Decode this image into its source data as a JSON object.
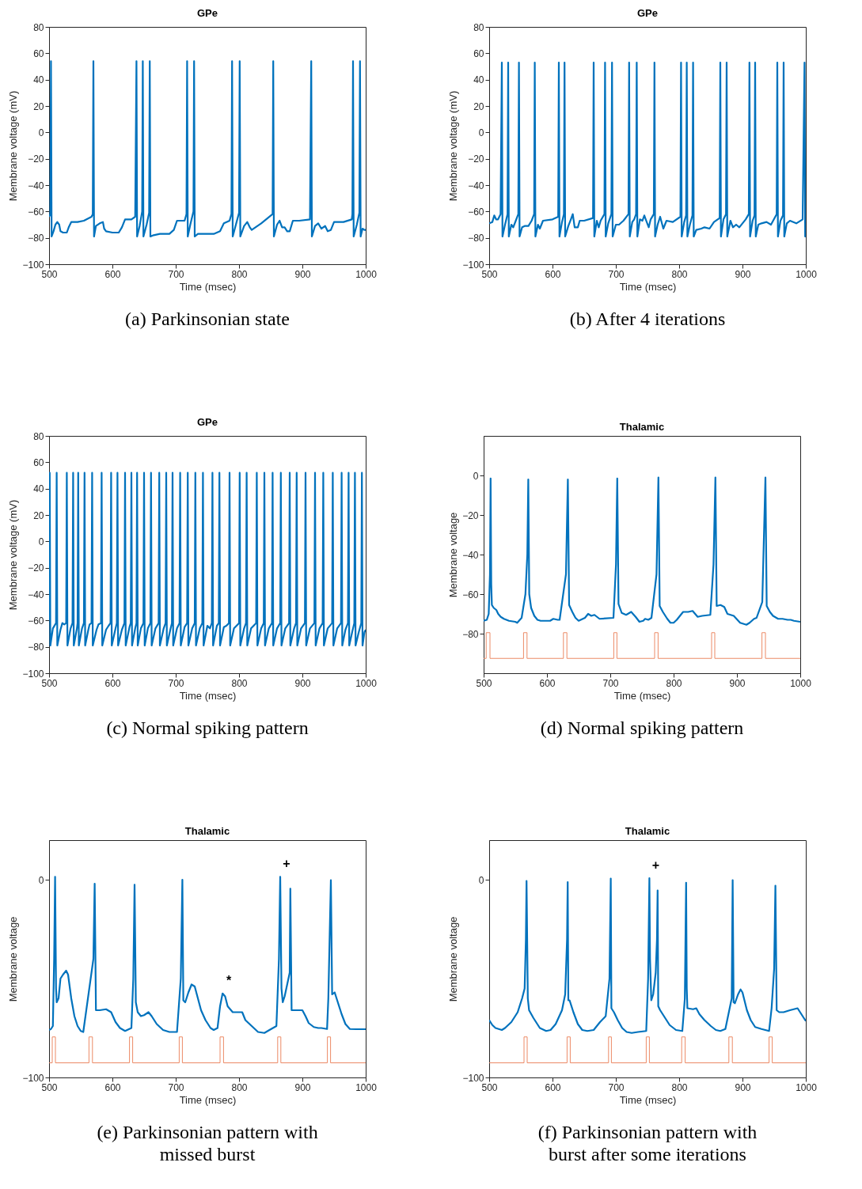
{
  "chart_data": [
    {
      "type": "line",
      "title": "GPe",
      "xlabel": "Time (msec)",
      "ylabel": "Membrane voltage (mV)",
      "xlim": [
        500,
        1000
      ],
      "xticks": [
        500,
        600,
        700,
        800,
        900,
        1000
      ],
      "ylim": [
        -100,
        80
      ],
      "yticks": [
        -100,
        -80,
        -60,
        -40,
        -20,
        0,
        20,
        40,
        60,
        80
      ],
      "grid": false,
      "annotations": [
        "(a) Parkinsonian state"
      ],
      "series": [
        {
          "color": "#0072bd",
          "x": [
            500,
            502,
            503,
            504,
            507,
            510,
            513,
            516,
            518,
            522,
            528,
            531,
            535,
            545,
            555,
            567,
            569,
            570,
            571,
            574,
            580,
            585,
            587,
            590,
            600,
            610,
            615,
            620,
            630,
            636,
            638,
            639,
            643,
            647,
            648,
            649,
            654,
            658,
            659,
            660,
            665,
            675,
            690,
            697,
            702,
            714,
            717,
            718,
            719,
            723,
            728,
            729,
            730,
            735,
            745,
            760,
            770,
            776,
            785,
            788,
            789,
            790,
            795,
            800,
            801,
            802,
            808,
            813,
            817,
            820,
            835,
            853,
            854,
            855,
            860,
            864,
            868,
            872,
            876,
            880,
            885,
            895,
            912,
            914,
            915,
            920,
            925,
            930,
            936,
            940,
            945,
            950,
            965,
            978,
            979,
            980,
            981,
            986,
            990,
            991,
            992,
            995,
            998,
            1000
          ],
          "values": [
            -64,
            -62,
            54,
            -79,
            -75,
            -70,
            -68,
            -70,
            -75,
            -76,
            -76,
            -72,
            -68,
            -68,
            -67,
            -64,
            -62,
            54,
            -79,
            -71,
            -69,
            -68,
            -73,
            -75,
            -76,
            -76,
            -72,
            -66,
            -66,
            -64,
            54,
            -79,
            -71,
            -60,
            54,
            -79,
            -70,
            -61,
            54,
            -79,
            -78,
            -77,
            -77,
            -74,
            -67,
            -67,
            -62,
            54,
            -79,
            -70,
            -60,
            54,
            -79,
            -77,
            -77,
            -77,
            -75,
            -69,
            -67,
            -62,
            54,
            -79,
            -70,
            -61,
            54,
            -79,
            -71,
            -68,
            -72,
            -74,
            -69,
            -62,
            54,
            -79,
            -70,
            -67,
            -72,
            -72,
            -75,
            -75,
            -67,
            -67,
            -66,
            54,
            -79,
            -71,
            -69,
            -73,
            -71,
            -75,
            -74,
            -68,
            -68,
            -66,
            -62,
            54,
            -79,
            -70,
            -61,
            54,
            -79,
            -73,
            -74,
            -74
          ]
        }
      ]
    },
    {
      "type": "line",
      "title": "GPe",
      "xlabel": "Time (msec)",
      "ylabel": "Membrane voltage (mV)",
      "xlim": [
        500,
        1000
      ],
      "xticks": [
        500,
        600,
        700,
        800,
        900,
        1000
      ],
      "ylim": [
        -100,
        80
      ],
      "yticks": [
        -100,
        -80,
        -60,
        -40,
        -20,
        0,
        20,
        40,
        60,
        80
      ],
      "grid": false,
      "annotations": [
        "(b) After 4 iterations"
      ],
      "series": [
        {
          "color": "#0072bd",
          "x": [
            500,
            505,
            508,
            511,
            514,
            518,
            520,
            521,
            525,
            529,
            530,
            531,
            535,
            538,
            542,
            546,
            547,
            548,
            552,
            556,
            562,
            567,
            571,
            572,
            573,
            577,
            580,
            585,
            600,
            609,
            610,
            611,
            615,
            618,
            619,
            620,
            625,
            629,
            632,
            635,
            640,
            643,
            650,
            664,
            665,
            666,
            670,
            673,
            676,
            682,
            683,
            684,
            688,
            693,
            694,
            695,
            700,
            705,
            712,
            720,
            721,
            722,
            726,
            729,
            732,
            733,
            734,
            738,
            742,
            745,
            748,
            752,
            755,
            760,
            761,
            762,
            766,
            770,
            775,
            780,
            790,
            802,
            803,
            804,
            808,
            811,
            812,
            813,
            817,
            821,
            822,
            823,
            827,
            835,
            840,
            848,
            855,
            864,
            865,
            866,
            870,
            874,
            875,
            876,
            881,
            885,
            890,
            895,
            905,
            910,
            911,
            912,
            916,
            919,
            920,
            921,
            925,
            930,
            938,
            945,
            954,
            955,
            956,
            960,
            964,
            965,
            966,
            970,
            975,
            985,
            995,
            998,
            999,
            1000
          ],
          "values": [
            -69,
            -68,
            -63,
            -66,
            -66,
            -62,
            53,
            -79,
            -70,
            -62,
            53,
            -79,
            -70,
            -72,
            -67,
            -62,
            53,
            -79,
            -72,
            -71,
            -71,
            -67,
            -62,
            53,
            -79,
            -70,
            -73,
            -67,
            -66,
            -64,
            53,
            -79,
            -68,
            -62,
            53,
            -79,
            -71,
            -66,
            -62,
            -72,
            -72,
            -67,
            -67,
            -65,
            53,
            -79,
            -67,
            -72,
            -67,
            -62,
            53,
            -79,
            -69,
            -62,
            53,
            -79,
            -70,
            -70,
            -67,
            -62,
            53,
            -79,
            -68,
            -66,
            -62,
            53,
            -79,
            -66,
            -67,
            -63,
            -67,
            -72,
            -66,
            -62,
            53,
            -79,
            -70,
            -64,
            -73,
            -67,
            -68,
            -64,
            53,
            -79,
            -68,
            -63,
            53,
            -79,
            -70,
            -63,
            53,
            -79,
            -74,
            -73,
            -72,
            -73,
            -68,
            -65,
            53,
            -79,
            -66,
            -62,
            53,
            -79,
            -67,
            -72,
            -70,
            -72,
            -66,
            -62,
            53,
            -79,
            -67,
            -63,
            53,
            -79,
            -70,
            -69,
            -68,
            -70,
            -62,
            53,
            -79,
            -67,
            -63,
            53,
            -79,
            -69,
            -67,
            -69,
            -66,
            53,
            -79,
            -79
          ]
        }
      ]
    },
    {
      "type": "line",
      "title": "GPe",
      "xlabel": "Time (msec)",
      "ylabel": "Membrane voltage (mV)",
      "xlim": [
        500,
        1000
      ],
      "xticks": [
        500,
        600,
        700,
        800,
        900,
        1000
      ],
      "ylim": [
        -100,
        80
      ],
      "yticks": [
        -100,
        -80,
        -60,
        -40,
        -20,
        0,
        20,
        40,
        60,
        80
      ],
      "grid": false,
      "annotations": [
        "(c) Normal spiking pattern"
      ],
      "series": [
        {
          "color": "#0072bd",
          "x": [
            500,
            501,
            502,
            506,
            511,
            512,
            513,
            518,
            521,
            524,
            527,
            528,
            529,
            534,
            537,
            538,
            539,
            544,
            545,
            546,
            547,
            552,
            555,
            556,
            557,
            562,
            564,
            567,
            568,
            569,
            575,
            578,
            582,
            583,
            584,
            590,
            594,
            597,
            598,
            599,
            605,
            607,
            608,
            609,
            615,
            619,
            620,
            621,
            627,
            629,
            630,
            631,
            636,
            638,
            639,
            640,
            645,
            649,
            650,
            651,
            656,
            660,
            661,
            662,
            668,
            673,
            674,
            675,
            681,
            684,
            685,
            686,
            692,
            694,
            695,
            696,
            702,
            706,
            707,
            708,
            714,
            718,
            719,
            720,
            726,
            730,
            731,
            732,
            738,
            742,
            743,
            744,
            750,
            754,
            757,
            758,
            759,
            765,
            768,
            769,
            770,
            776,
            780,
            784,
            785,
            786,
            792,
            796,
            800,
            801,
            802,
            808,
            811,
            812,
            813,
            819,
            823,
            827,
            828,
            829,
            835,
            839,
            840,
            841,
            847,
            852,
            853,
            854,
            860,
            865,
            866,
            867,
            873,
            879,
            880,
            881,
            887,
            890,
            891,
            892,
            898,
            904,
            905,
            906,
            912,
            919,
            920,
            921,
            927,
            932,
            933,
            934,
            940,
            947,
            948,
            949,
            955,
            961,
            962,
            963,
            968,
            972,
            973,
            974,
            979,
            982,
            983,
            984,
            989,
            993,
            994,
            995,
            998,
            1000
          ],
          "values": [
            -60,
            52,
            -79,
            -66,
            -62,
            52,
            -79,
            -67,
            -62,
            -63,
            -62,
            52,
            -79,
            -66,
            -62,
            52,
            -79,
            -66,
            -62,
            52,
            -79,
            -66,
            -62,
            52,
            -79,
            -67,
            -63,
            -62,
            52,
            -79,
            -67,
            -63,
            -62,
            52,
            -79,
            -67,
            -64,
            -62,
            52,
            -79,
            -66,
            -62,
            52,
            -79,
            -67,
            -62,
            52,
            -79,
            -65,
            -62,
            52,
            -79,
            -66,
            -62,
            52,
            -79,
            -66,
            -62,
            52,
            -79,
            -66,
            -62,
            52,
            -79,
            -66,
            -62,
            52,
            -79,
            -66,
            -62,
            52,
            -79,
            -66,
            -62,
            52,
            -79,
            -66,
            -62,
            52,
            -79,
            -65,
            -62,
            52,
            -79,
            -66,
            -62,
            52,
            -79,
            -66,
            -62,
            52,
            -79,
            -64,
            -66,
            -62,
            52,
            -79,
            -64,
            -62,
            52,
            -79,
            -65,
            -64,
            -62,
            52,
            -79,
            -66,
            -64,
            -62,
            52,
            -79,
            -66,
            -62,
            52,
            -79,
            -66,
            -64,
            -62,
            52,
            -79,
            -66,
            -62,
            52,
            -79,
            -66,
            -62,
            52,
            -79,
            -66,
            -62,
            52,
            -79,
            -66,
            -62,
            52,
            -79,
            -66,
            -62,
            52,
            -79,
            -66,
            -62,
            52,
            -79,
            -66,
            -62,
            52,
            -79,
            -66,
            -62,
            52,
            -79,
            -66,
            -62,
            52,
            -79,
            -66,
            -62,
            52,
            -79,
            -67,
            -62,
            52,
            -79,
            -68,
            -62,
            52,
            -79,
            -69,
            -62,
            52,
            -79,
            -69,
            -67
          ]
        }
      ]
    },
    {
      "type": "line",
      "title": "Thalamic",
      "xlabel": "Time (msec)",
      "ylabel": "Membrane voltage",
      "xlim": [
        500,
        1000
      ],
      "xticks": [
        500,
        600,
        700,
        800,
        900,
        1000
      ],
      "ylim": [
        -100,
        20
      ],
      "yticks": [
        -80,
        -60,
        -40,
        -20,
        0
      ],
      "grid": false,
      "annotations": [
        "(d) Normal spiking pattern"
      ],
      "series": [
        {
          "color": "#0072bd",
          "x": [
            500,
            505,
            508,
            510,
            511,
            512,
            513,
            516,
            520,
            523,
            527,
            532,
            540,
            550,
            553,
            560,
            566,
            569,
            570.5,
            572,
            575,
            580,
            585,
            590,
            597,
            605,
            610,
            617,
            620,
            630,
            633,
            635,
            640,
            645,
            650,
            660,
            665,
            670,
            675,
            683,
            705,
            709,
            711,
            713,
            718,
            725,
            733,
            740,
            746,
            752,
            755,
            760,
            765,
            773,
            776,
            778,
            783,
            790,
            795,
            800,
            805,
            815,
            823,
            830,
            838,
            845,
            858,
            863,
            866,
            868,
            874,
            880,
            885,
            895,
            905,
            915,
            920,
            927,
            931,
            940,
            945,
            947,
            952,
            957,
            965,
            972,
            980,
            985,
            990,
            1000
          ],
          "values": [
            -73.5,
            -73,
            -70,
            -50,
            -1.5,
            -55,
            -65.5,
            -67,
            -68,
            -70,
            -71.5,
            -72.5,
            -73.5,
            -74,
            -74.5,
            -72,
            -60,
            -40,
            -2,
            -60,
            -67,
            -71,
            -73,
            -73.5,
            -73.5,
            -73.5,
            -72.5,
            -73,
            -73,
            -50,
            -2,
            -65.5,
            -69,
            -72,
            -73.5,
            -72,
            -70,
            -71,
            -70.5,
            -72.5,
            -72,
            -45,
            -1.5,
            -65,
            -69.5,
            -70.5,
            -69,
            -71.5,
            -74,
            -73.5,
            -72.5,
            -73,
            -72,
            -50,
            -1,
            -66,
            -69,
            -72.5,
            -74.5,
            -74.5,
            -73,
            -69,
            -69,
            -68.5,
            -71.5,
            -71,
            -70.5,
            -45,
            -1,
            -66,
            -65.5,
            -66.5,
            -70,
            -71,
            -74.5,
            -75.5,
            -74.5,
            -72.5,
            -72,
            -64,
            -1,
            -66,
            -69,
            -71,
            -72.5,
            -72.5,
            -73,
            -73,
            -73.5,
            -74
          ]
        },
        {
          "type": "step",
          "color": "#ec8a66",
          "x": [
            500,
            504,
            510,
            563,
            568.5,
            626,
            631.5,
            705.5,
            710.5,
            770,
            775.5,
            860,
            865,
            939.5,
            945,
            1000
          ],
          "values": [
            -92.5,
            -79.5,
            -92.5,
            -79.5,
            -92.5,
            -79.5,
            -92.5,
            -79.5,
            -92.5,
            -79.5,
            -92.5,
            -79.5,
            -92.5,
            -79.5,
            -92.5,
            -92.5
          ]
        }
      ]
    },
    {
      "type": "line",
      "title": "Thalamic",
      "xlabel": "Time (msec)",
      "ylabel": "Membrane voltage",
      "xlim": [
        500,
        1000
      ],
      "xticks": [
        500,
        600,
        700,
        800,
        900,
        1000
      ],
      "ylim": [
        -100,
        20
      ],
      "yticks": [
        -100,
        0
      ],
      "grid": false,
      "annotations": [
        {
          "text": "*",
          "x": 774,
          "y": -57.5
        },
        {
          "text": "+",
          "x": 865,
          "y": 1.5
        },
        "(e) Parkinsonian pattern with missed burst"
      ],
      "series": [
        {
          "color": "#0072bd",
          "x": [
            500,
            503,
            506,
            508,
            509.5,
            511,
            512,
            515,
            518,
            522,
            527,
            530,
            535,
            540,
            545,
            550,
            554,
            570,
            572,
            574,
            580,
            590,
            598,
            605,
            612,
            620,
            630,
            633,
            635,
            637,
            640,
            645,
            650,
            657,
            662,
            670,
            680,
            690,
            702,
            708,
            710.5,
            712,
            715,
            720,
            725,
            730,
            735,
            740,
            747,
            755,
            760,
            766,
            770,
            774,
            778,
            782,
            790,
            795,
            805,
            810,
            820,
            830,
            840,
            848,
            859,
            863,
            865,
            867,
            869,
            872,
            880,
            881,
            883,
            890,
            900,
            905,
            910,
            918,
            925,
            930,
            939,
            941,
            945,
            947,
            951,
            955,
            962,
            968,
            975,
            985,
            1000
          ],
          "values": [
            -76,
            -75.5,
            -74,
            -40,
            1.5,
            -55,
            -62,
            -60,
            -50,
            -48,
            -46,
            -48,
            -60,
            -69,
            -74,
            -76.5,
            -77,
            -40,
            -2,
            -66,
            -66,
            -65.5,
            -67,
            -72,
            -75,
            -76.5,
            -75,
            -50,
            -2.5,
            -62,
            -67,
            -69,
            -68.5,
            -67,
            -69,
            -73,
            -76,
            -77,
            -77,
            -50,
            0,
            -61,
            -62,
            -57,
            -53,
            -54,
            -60,
            -66,
            -71,
            -75,
            -76,
            -75,
            -64,
            -57.5,
            -59,
            -64,
            -67,
            -67,
            -67,
            -71,
            -74,
            -77,
            -77.5,
            -76,
            -74,
            -40,
            1.5,
            -55,
            -62,
            -59,
            -47,
            -4.5,
            -66,
            -66,
            -66,
            -69,
            -72.5,
            -74.5,
            -75,
            -75,
            -75.5,
            -60,
            -0.2,
            -58,
            -57,
            -61,
            -68,
            -73,
            -75.5,
            -75.6,
            -75.6
          ]
        },
        {
          "type": "step",
          "color": "#ec8a66",
          "x": [
            500,
            505,
            510,
            563,
            568.5,
            627,
            632,
            705.5,
            710.5,
            770,
            775.5,
            861,
            866,
            939.5,
            944.5,
            1000
          ],
          "values": [
            -92.6,
            -79.5,
            -92.6,
            -79.5,
            -92.6,
            -79.5,
            -92.6,
            -79.5,
            -92.6,
            -79.5,
            -92.6,
            -79.5,
            -92.6,
            -79.5,
            -92.6,
            -92.6
          ]
        }
      ]
    },
    {
      "type": "line",
      "title": "Thalamic",
      "xlabel": "Time (msec)",
      "ylabel": "Membrane voltage",
      "xlim": [
        500,
        1000
      ],
      "xticks": [
        500,
        600,
        700,
        800,
        900,
        1000
      ],
      "ylim": [
        -100,
        20
      ],
      "yticks": [
        -100,
        0
      ],
      "grid": false,
      "annotations": [
        {
          "text": "+",
          "x": 753,
          "y": 0.8
        },
        "(f) Parkinsonian pattern with burst after some iterations"
      ],
      "series": [
        {
          "color": "#0072bd",
          "x": [
            500,
            505,
            510,
            515,
            520,
            525,
            535,
            545,
            552,
            556,
            558,
            559,
            561,
            563,
            570,
            580,
            590,
            597,
            605,
            615,
            620,
            623,
            624,
            625,
            627,
            633,
            640,
            647,
            655,
            665,
            675,
            684,
            690,
            692,
            693,
            697,
            703,
            710,
            717,
            725,
            735,
            748,
            751,
            753,
            754,
            756,
            759,
            763,
            765,
            766,
            767,
            770,
            778,
            785,
            795,
            805,
            809,
            811,
            812,
            813,
            822,
            827,
            832,
            840,
            850,
            858,
            865,
            873,
            883,
            884.5,
            886,
            888,
            893,
            897,
            900,
            907,
            913,
            920,
            930,
            942,
            946,
            950,
            952,
            954,
            958,
            965,
            975,
            987,
            993,
            1000
          ],
          "values": [
            -71,
            -73.5,
            -75,
            -75.5,
            -76,
            -75,
            -72,
            -67,
            -60,
            -55,
            -30,
            -0.6,
            -60,
            -66,
            -70,
            -75,
            -76.5,
            -76,
            -73,
            -66,
            -58,
            -30,
            -1.2,
            -61,
            -61,
            -67,
            -73,
            -76,
            -76.5,
            -76,
            -72,
            -69,
            -50,
            0.6,
            -65,
            -67,
            -71,
            -75,
            -77,
            -77.5,
            -77,
            -76.5,
            -50,
            0.8,
            -40,
            -61,
            -58,
            -47,
            -30,
            -5.4,
            -64,
            -66,
            -70,
            -73.5,
            -76,
            -76.5,
            -60,
            -1.5,
            -55,
            -65,
            -65.5,
            -65,
            -68,
            -71,
            -74,
            -76,
            -76.5,
            -75.5,
            -60,
            -0.2,
            -62,
            -62.5,
            -58,
            -55.5,
            -57,
            -66,
            -71,
            -74.5,
            -75.5,
            -76.5,
            -65,
            -45,
            -3,
            -66,
            -67,
            -67,
            -66,
            -65,
            -68,
            -71.5
          ]
        },
        {
          "type": "step",
          "color": "#ec8a66",
          "x": [
            500,
            555,
            560,
            623,
            628,
            688.5,
            693,
            748,
            753,
            804,
            809.5,
            878.5,
            884,
            942,
            947,
            1000
          ],
          "values": [
            -92.6,
            -79.5,
            -92.6,
            -79.5,
            -92.6,
            -79.5,
            -92.6,
            -79.5,
            -92.6,
            -79.5,
            -92.6,
            -79.5,
            -92.6,
            -79.5,
            -92.6,
            -92.6
          ]
        }
      ]
    }
  ]
}
